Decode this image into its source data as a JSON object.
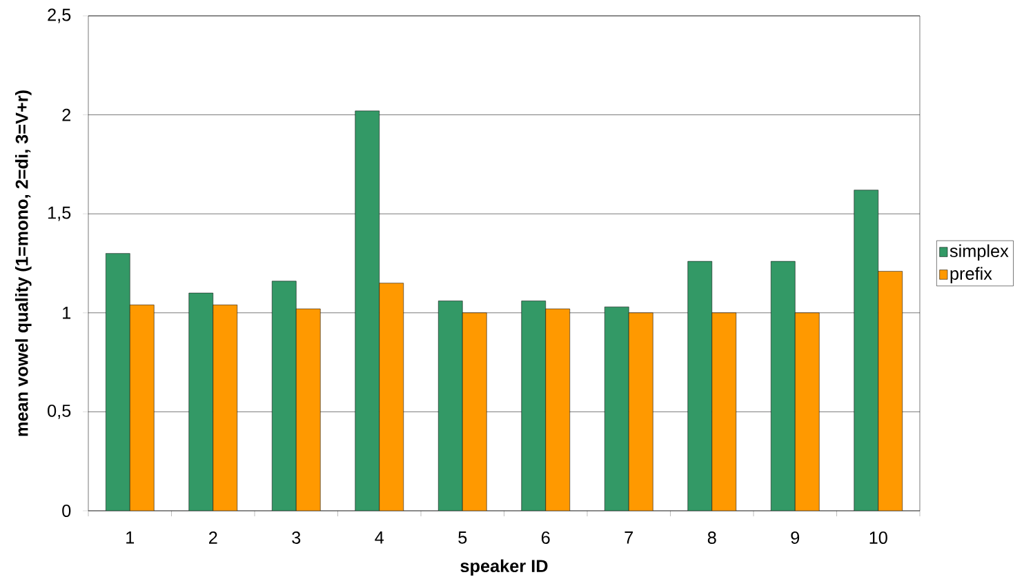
{
  "chart_data": {
    "type": "bar",
    "xlabel": "speaker ID",
    "ylabel": "mean vowel quality  (1=mono, 2=di, 3=V+r)",
    "categories": [
      "1",
      "2",
      "3",
      "4",
      "5",
      "6",
      "7",
      "8",
      "9",
      "10"
    ],
    "series": [
      {
        "name": "simplex",
        "color": "#339966",
        "values": [
          1.3,
          1.1,
          1.16,
          2.02,
          1.06,
          1.06,
          1.03,
          1.26,
          1.26,
          1.62
        ]
      },
      {
        "name": "prefix",
        "color": "#ff9900",
        "values": [
          1.04,
          1.04,
          1.02,
          1.15,
          1.0,
          1.02,
          1.0,
          1.0,
          1.0,
          1.21
        ]
      }
    ],
    "ylim": [
      0,
      2.5
    ],
    "yticks": [
      0,
      {
        "value": 0.5,
        "label": "0,5"
      },
      1,
      {
        "value": 1.5,
        "label": "1,5"
      },
      2,
      {
        "value": 2.5,
        "label": "2,5"
      }
    ],
    "grid": "y",
    "legend": "right"
  }
}
